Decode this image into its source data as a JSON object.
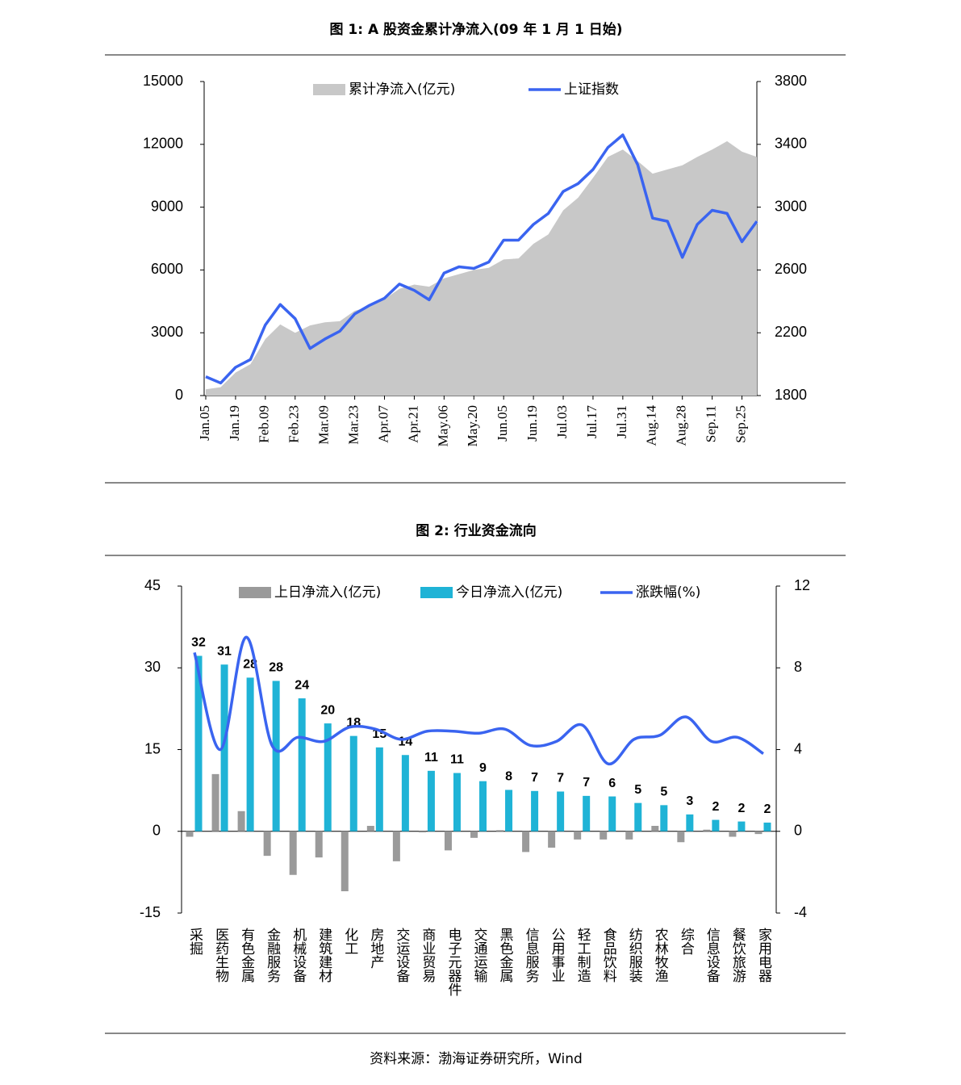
{
  "chart_data": [
    {
      "type": "combo",
      "title": "图 1:  A 股资金累计净流入(09 年 1 月 1 日始)",
      "categories": [
        "Jan.05",
        null,
        "Jan.19",
        null,
        "Feb.09",
        null,
        "Feb.23",
        null,
        "Mar.09",
        null,
        "Mar.23",
        null,
        "Apr.07",
        null,
        "Apr.21",
        null,
        "May.06",
        null,
        "May.20",
        null,
        "Jun.05",
        null,
        "Jun.19",
        null,
        "Jul.03",
        null,
        "Jul.17",
        null,
        "Jul.31",
        null,
        "Aug.14",
        null,
        "Aug.28",
        null,
        "Sep.11",
        null,
        "Sep.25",
        null
      ],
      "series": [
        {
          "name": "累计净流入(亿元)",
          "type": "area",
          "color": "#c8c8c8",
          "values": [
            300,
            400,
            1100,
            1500,
            2700,
            3400,
            3000,
            3350,
            3500,
            3550,
            4050,
            4250,
            4600,
            5100,
            5300,
            5200,
            5600,
            5800,
            6000,
            6100,
            6500,
            6550,
            7250,
            7700,
            8850,
            9450,
            10400,
            11400,
            11750,
            11200,
            10600,
            10800,
            11000,
            11400,
            11750,
            12150,
            11650,
            11400
          ]
        },
        {
          "name": "上证指数",
          "type": "line",
          "color": "#3a64f0",
          "axis": "y2",
          "values": [
            1920,
            1880,
            1980,
            2030,
            2250,
            2380,
            2290,
            2100,
            2160,
            2210,
            2320,
            2375,
            2420,
            2510,
            2470,
            2410,
            2580,
            2620,
            2610,
            2650,
            2790,
            2790,
            2890,
            2960,
            3100,
            3150,
            3240,
            3380,
            3460,
            3270,
            2930,
            2910,
            2680,
            2890,
            2980,
            2960,
            2780,
            2910
          ]
        }
      ],
      "ylim": [
        0,
        15000
      ],
      "yticks": [
        0,
        3000,
        6000,
        9000,
        12000,
        15000
      ],
      "y2lim": [
        1800,
        3800
      ],
      "y2ticks": [
        1800,
        2200,
        2600,
        3000,
        3400,
        3800
      ],
      "legend": "top"
    },
    {
      "type": "combo",
      "title": "图 2:  行业资金流向",
      "categories": [
        "采掘",
        "医药生物",
        "有色金属",
        "金融服务",
        "机械设备",
        "建筑建材",
        "化工",
        "房地产",
        "交运设备",
        "商业贸易",
        "电子元器件",
        "交通运输",
        "黑色金属",
        "信息服务",
        "公用事业",
        "轻工制造",
        "食品饮料",
        "纺织服装",
        "农林牧渔",
        "综合",
        "信息设备",
        "餐饮旅游",
        "家用电器"
      ],
      "series": [
        {
          "name": "上日净流入(亿元)",
          "type": "bar",
          "color": "#9a9a9a",
          "values": [
            -1.0,
            10.5,
            3.7,
            -4.5,
            -8.0,
            -4.8,
            -11.0,
            1.0,
            -5.5,
            -0.2,
            -3.5,
            -1.2,
            0.2,
            -3.8,
            -3.0,
            -1.5,
            -1.5,
            -1.5,
            1.0,
            -2.0,
            0.3,
            -1.0,
            -0.5
          ]
        },
        {
          "name": "今日净流入(亿元)",
          "type": "bar",
          "color": "#1fb3d6",
          "values": [
            32.2,
            30.6,
            28.2,
            27.6,
            24.4,
            19.8,
            17.5,
            15.4,
            14.0,
            11.1,
            10.7,
            9.2,
            7.6,
            7.4,
            7.3,
            6.5,
            6.4,
            5.2,
            4.8,
            3.1,
            2.1,
            1.8,
            1.6
          ],
          "value_labels": [
            "32",
            "31",
            "28",
            "28",
            "24",
            "20",
            "18",
            "15",
            "14",
            "11",
            "11",
            "9",
            "8",
            "7",
            "7",
            "7",
            "6",
            "5",
            "5",
            "3",
            "2",
            "2",
            "2"
          ]
        },
        {
          "name": "涨跌幅(%)",
          "type": "line",
          "color": "#3a64f0",
          "axis": "y2",
          "values": [
            8.75,
            4.0,
            9.5,
            4.2,
            4.6,
            4.4,
            5.1,
            5.0,
            4.5,
            4.9,
            4.9,
            4.8,
            5.0,
            4.2,
            4.4,
            5.2,
            3.3,
            4.5,
            4.7,
            5.6,
            4.4,
            4.6,
            3.8
          ]
        }
      ],
      "ylim": [
        -15,
        45
      ],
      "yticks": [
        -15,
        0,
        15,
        30,
        45
      ],
      "y2lim": [
        -4,
        12
      ],
      "y2ticks": [
        -4,
        0,
        4,
        8,
        12
      ],
      "legend": "top"
    }
  ],
  "footer": {
    "source": "资料来源：渤海证券研究所，Wind"
  }
}
